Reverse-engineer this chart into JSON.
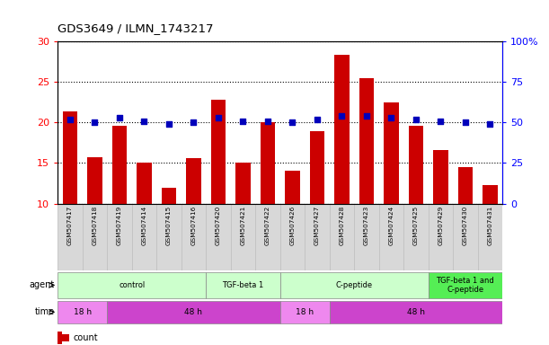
{
  "title": "GDS3649 / ILMN_1743217",
  "samples": [
    "GSM507417",
    "GSM507418",
    "GSM507419",
    "GSM507414",
    "GSM507415",
    "GSM507416",
    "GSM507420",
    "GSM507421",
    "GSM507422",
    "GSM507426",
    "GSM507427",
    "GSM507428",
    "GSM507423",
    "GSM507424",
    "GSM507425",
    "GSM507429",
    "GSM507430",
    "GSM507431"
  ],
  "count_values": [
    21.4,
    15.7,
    19.6,
    15.0,
    11.9,
    15.6,
    22.8,
    15.1,
    20.0,
    14.0,
    18.9,
    28.3,
    25.5,
    22.5,
    19.6,
    16.6,
    14.5,
    12.3
  ],
  "percentile_values": [
    52,
    50,
    53,
    51,
    49,
    50,
    53,
    50.5,
    51,
    50,
    52,
    54,
    54,
    53,
    52,
    51,
    50,
    49
  ],
  "bar_color": "#cc0000",
  "dot_color": "#0000bb",
  "ylim_left": [
    10,
    30
  ],
  "ylim_right": [
    0,
    100
  ],
  "yticks_left": [
    10,
    15,
    20,
    25,
    30
  ],
  "yticks_right": [
    0,
    25,
    50,
    75,
    100
  ],
  "agent_groups": [
    {
      "label": "control",
      "start": 0,
      "end": 6,
      "color": "#ccffcc"
    },
    {
      "label": "TGF-beta 1",
      "start": 6,
      "end": 9,
      "color": "#ccffcc"
    },
    {
      "label": "C-peptide",
      "start": 9,
      "end": 15,
      "color": "#ccffcc"
    },
    {
      "label": "TGF-beta 1 and\nC-peptide",
      "start": 15,
      "end": 18,
      "color": "#55ee55"
    }
  ],
  "time_groups": [
    {
      "label": "18 h",
      "start": 0,
      "end": 2,
      "color": "#ee88ee"
    },
    {
      "label": "48 h",
      "start": 2,
      "end": 9,
      "color": "#cc44cc"
    },
    {
      "label": "18 h",
      "start": 9,
      "end": 11,
      "color": "#ee88ee"
    },
    {
      "label": "48 h",
      "start": 11,
      "end": 18,
      "color": "#cc44cc"
    }
  ],
  "legend_count_color": "#cc0000",
  "legend_dot_color": "#0000bb"
}
